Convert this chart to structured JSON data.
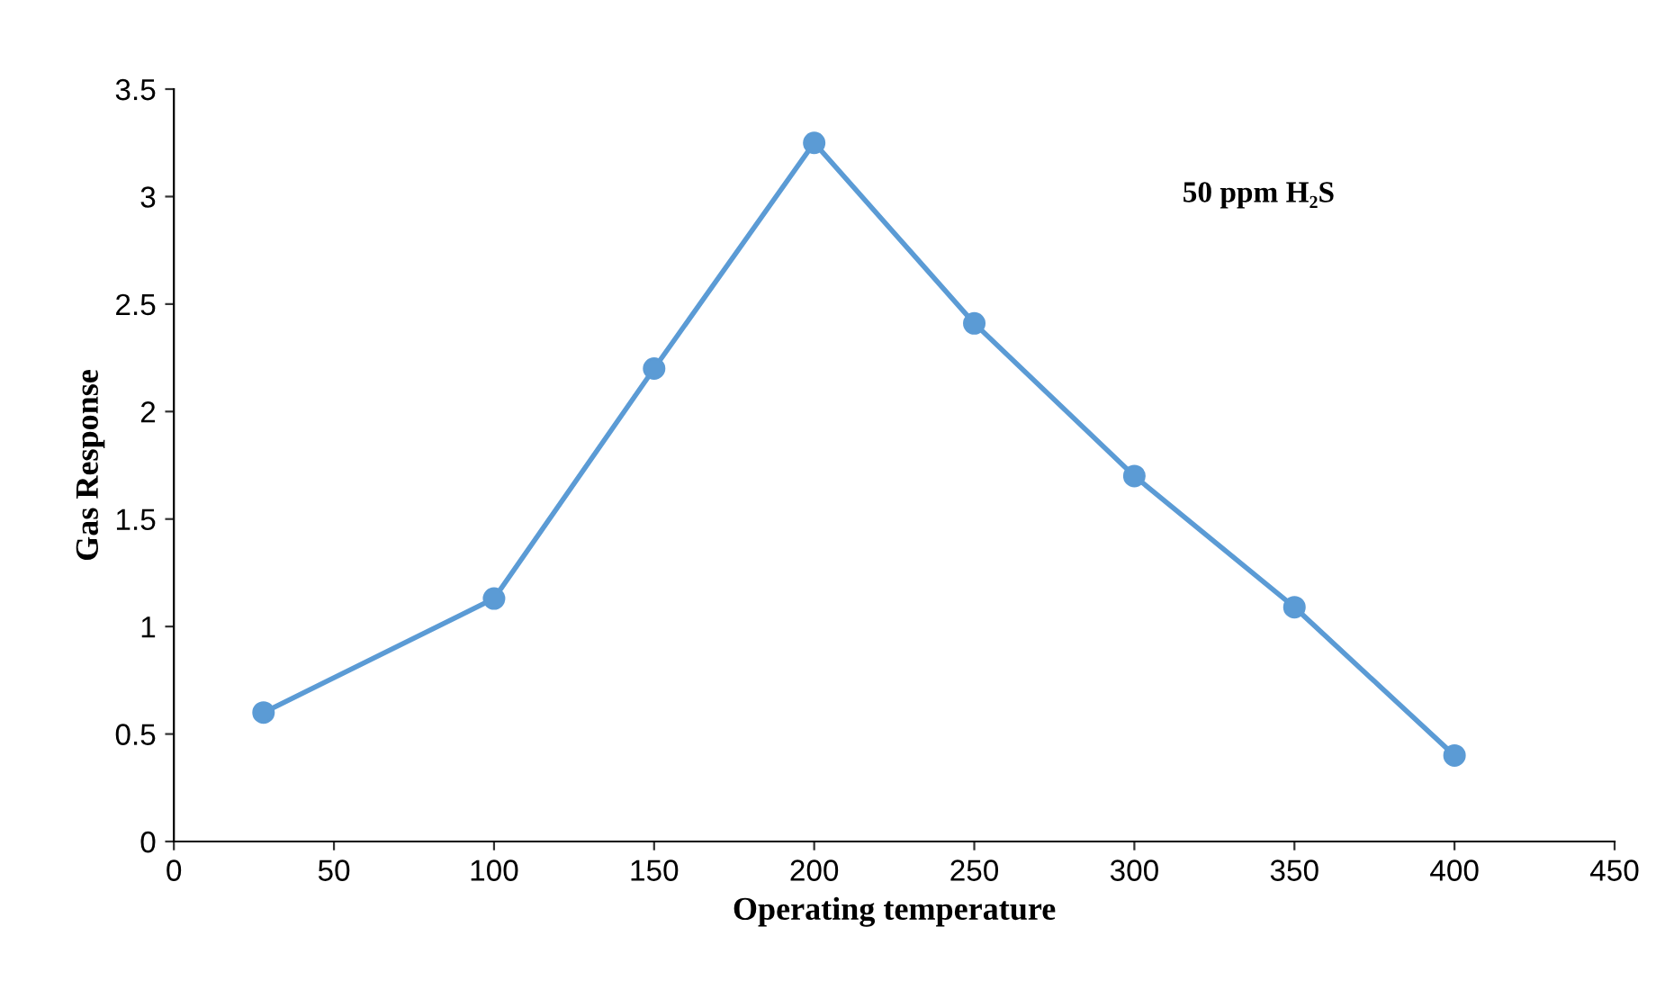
{
  "chart_data": {
    "type": "line",
    "xlabel": "Operating temperature",
    "ylabel": "Gas Response",
    "x": [
      28,
      100,
      150,
      200,
      250,
      300,
      350,
      400
    ],
    "series": [
      {
        "color": "#5b9bd5",
        "values": [
          0.6,
          1.13,
          2.2,
          3.25,
          2.41,
          1.7,
          1.09,
          0.4
        ]
      }
    ],
    "xlim": [
      0,
      450
    ],
    "xticks": [
      0,
      50,
      100,
      150,
      200,
      250,
      300,
      350,
      400,
      450
    ],
    "ylim": [
      0,
      3.5
    ],
    "yticks": [
      0,
      0.5,
      1,
      1.5,
      2,
      2.5,
      3,
      3.5
    ],
    "annotations": [
      "50 ppm H₂S"
    ],
    "marker": "circle",
    "line_style": "solid",
    "grid": false
  }
}
